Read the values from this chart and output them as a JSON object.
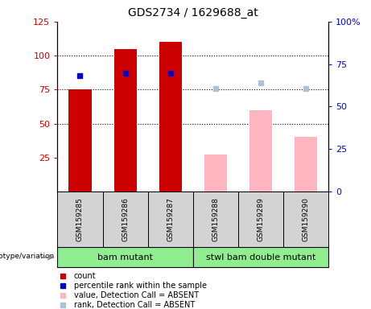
{
  "title": "GDS2734 / 1629688_at",
  "samples": [
    "GSM159285",
    "GSM159286",
    "GSM159287",
    "GSM159288",
    "GSM159289",
    "GSM159290"
  ],
  "groups": [
    {
      "label": "bam mutant",
      "color": "#90ee90",
      "start": 0,
      "end": 2
    },
    {
      "label": "stwl bam double mutant",
      "color": "#90ee90",
      "start": 3,
      "end": 5
    }
  ],
  "count_values": [
    75,
    105,
    110,
    null,
    null,
    null
  ],
  "rank_values": [
    85,
    87,
    87,
    null,
    null,
    null
  ],
  "absent_value_values": [
    null,
    null,
    null,
    27,
    60,
    40
  ],
  "absent_rank_values": [
    null,
    null,
    null,
    76,
    80,
    76
  ],
  "ylim_left": [
    0,
    125
  ],
  "ylim_right": [
    0,
    100
  ],
  "yticks_left": [
    25,
    50,
    75,
    100,
    125
  ],
  "yticks_right": [
    0,
    25,
    50,
    75,
    100
  ],
  "ytick_labels_left": [
    "25",
    "50",
    "75",
    "100",
    "125"
  ],
  "ytick_labels_right": [
    "0",
    "25",
    "50",
    "75",
    "100%"
  ],
  "hlines": [
    50,
    75,
    100
  ],
  "bar_width": 0.5,
  "marker_size": 5,
  "count_color": "#cc0000",
  "rank_color": "#0000cc",
  "absent_value_color": "#ffb6c1",
  "absent_rank_color": "#b0c0d8",
  "plot_bg": "#ffffff",
  "sample_bg": "#d3d3d3",
  "group_bg": "#90ee90",
  "legend_items": [
    {
      "color": "#cc0000",
      "label": "count"
    },
    {
      "color": "#0000cc",
      "label": "percentile rank within the sample"
    },
    {
      "color": "#ffb6c1",
      "label": "value, Detection Call = ABSENT"
    },
    {
      "color": "#b0c0d8",
      "label": "rank, Detection Call = ABSENT"
    }
  ]
}
